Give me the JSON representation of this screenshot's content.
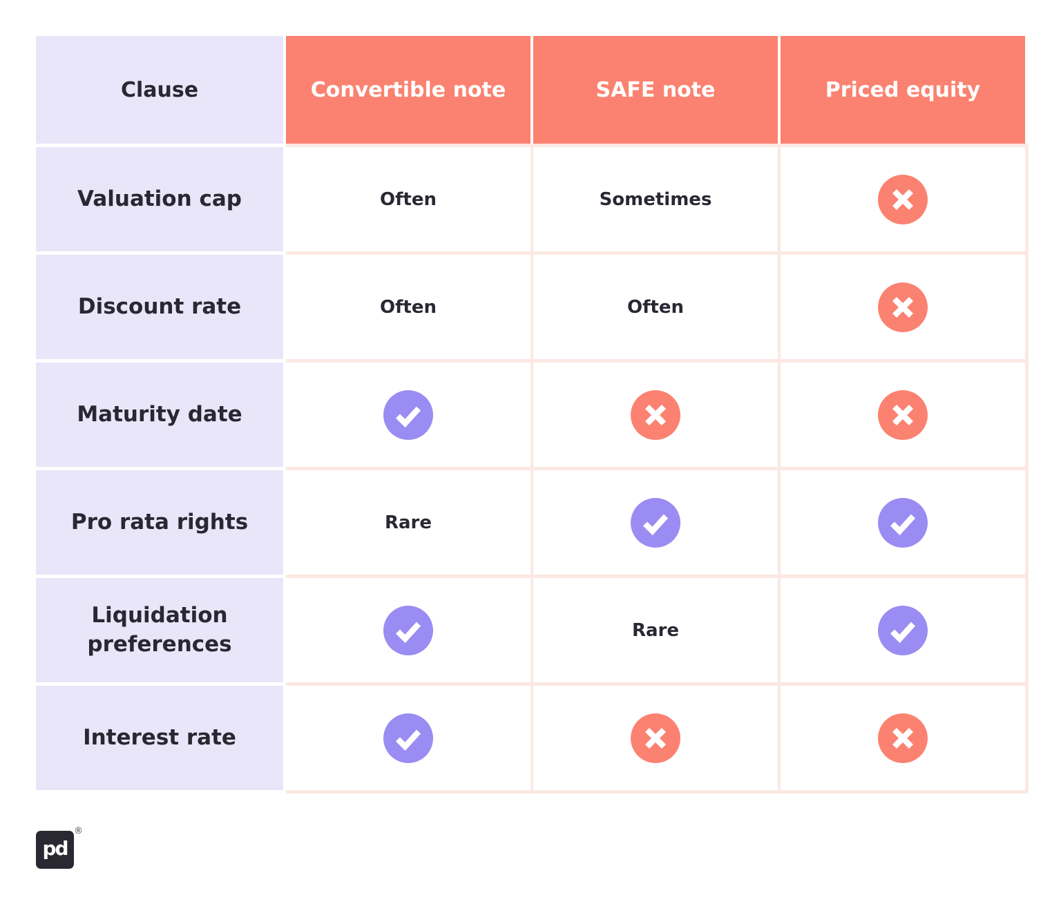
{
  "colors": {
    "coral": "#FB8270",
    "lavender": "#EAE6F9",
    "pink_separator": "#FCE8E3",
    "purple_check": "#9A8CF2",
    "text_dark": "#2A2733",
    "logo_background": "#2A2831",
    "page_background": "#FFFFFF",
    "icon_glyph_white": "#FFFFFF"
  },
  "table": {
    "columns": [
      {
        "label": "Clause"
      },
      {
        "label": "Convertible note"
      },
      {
        "label": "SAFE note"
      },
      {
        "label": "Priced equity"
      }
    ],
    "rows": [
      {
        "label": "Valuation cap",
        "cells": [
          {
            "type": "text",
            "value": "Often"
          },
          {
            "type": "text",
            "value": "Sometimes"
          },
          {
            "type": "cross",
            "icon": "cross-icon"
          }
        ]
      },
      {
        "label": "Discount rate",
        "cells": [
          {
            "type": "text",
            "value": "Often"
          },
          {
            "type": "text",
            "value": "Often"
          },
          {
            "type": "cross",
            "icon": "cross-icon"
          }
        ]
      },
      {
        "label": "Maturity date",
        "cells": [
          {
            "type": "check",
            "icon": "check-icon"
          },
          {
            "type": "cross",
            "icon": "cross-icon"
          },
          {
            "type": "cross",
            "icon": "cross-icon"
          }
        ]
      },
      {
        "label": "Pro rata rights",
        "cells": [
          {
            "type": "text",
            "value": "Rare"
          },
          {
            "type": "check",
            "icon": "check-icon"
          },
          {
            "type": "check",
            "icon": "check-icon"
          }
        ]
      },
      {
        "label": "Liquidation preferences",
        "cells": [
          {
            "type": "check",
            "icon": "check-icon"
          },
          {
            "type": "text",
            "value": "Rare"
          },
          {
            "type": "check",
            "icon": "check-icon"
          }
        ]
      },
      {
        "label": "Interest rate",
        "cells": [
          {
            "type": "check",
            "icon": "check-icon"
          },
          {
            "type": "cross",
            "icon": "cross-icon"
          },
          {
            "type": "cross",
            "icon": "cross-icon"
          }
        ]
      }
    ]
  },
  "chart_data": {
    "type": "table",
    "title": "",
    "columns": [
      "Clause",
      "Convertible note",
      "SAFE note",
      "Priced equity"
    ],
    "rows": [
      [
        "Valuation cap",
        "Often",
        "Sometimes",
        "no"
      ],
      [
        "Discount rate",
        "Often",
        "Often",
        "no"
      ],
      [
        "Maturity date",
        "yes",
        "no",
        "no"
      ],
      [
        "Pro rata rights",
        "Rare",
        "yes",
        "yes"
      ],
      [
        "Liquidation preferences",
        "yes",
        "Rare",
        "yes"
      ],
      [
        "Interest rate",
        "yes",
        "no",
        "no"
      ]
    ],
    "icon_legend": {
      "yes": "purple circle with white checkmark",
      "no": "coral circle with white cross"
    }
  },
  "logo": {
    "mark": "pd",
    "registered": "®"
  }
}
